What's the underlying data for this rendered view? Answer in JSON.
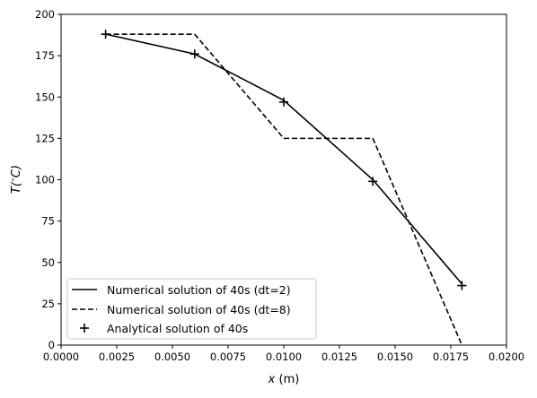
{
  "chart_data": {
    "type": "line",
    "title": "",
    "xlabel_main": "x",
    "xlabel_unit": " (m)",
    "ylabel_main": "T(",
    "ylabel_sup": "∘",
    "ylabel_rest": "C)",
    "xlim": [
      0.0,
      0.02
    ],
    "ylim": [
      0,
      200
    ],
    "xticks": [
      0.0,
      0.0025,
      0.005,
      0.0075,
      0.01,
      0.0125,
      0.015,
      0.0175,
      0.02
    ],
    "xtick_labels": [
      "0.0000",
      "0.0025",
      "0.0050",
      "0.0075",
      "0.0100",
      "0.0125",
      "0.0150",
      "0.0175",
      "0.0200"
    ],
    "yticks": [
      0,
      25,
      50,
      75,
      100,
      125,
      150,
      175,
      200
    ],
    "ytick_labels": [
      "0",
      "25",
      "50",
      "75",
      "100",
      "125",
      "150",
      "175",
      "200"
    ],
    "grid": false,
    "legend_position": "lower-left",
    "series": [
      {
        "name": "Numerical solution of 40s (dt=2)",
        "style": "solid",
        "color": "#000000",
        "x": [
          0.002,
          0.006,
          0.01,
          0.014,
          0.018
        ],
        "y": [
          188,
          176,
          148,
          100,
          37
        ]
      },
      {
        "name": "Numerical solution of 40s (dt=8)",
        "style": "dashed",
        "color": "#000000",
        "x": [
          0.002,
          0.006,
          0.01,
          0.014,
          0.018
        ],
        "y": [
          188,
          188,
          125,
          125,
          0
        ]
      },
      {
        "name": "Analytical solution of 40s",
        "style": "markers-plus",
        "color": "#000000",
        "x": [
          0.002,
          0.006,
          0.01,
          0.014,
          0.018
        ],
        "y": [
          188,
          176,
          147,
          99,
          36
        ]
      }
    ]
  }
}
